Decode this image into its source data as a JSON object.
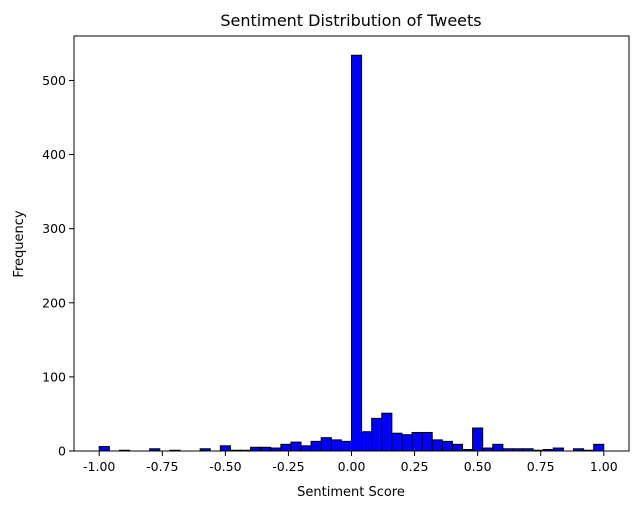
{
  "chart_data": {
    "type": "bar",
    "subtype": "histogram",
    "title": "Sentiment Distribution of Tweets",
    "xlabel": "Sentiment Score",
    "ylabel": "Frequency",
    "xlim": [
      -1.1,
      1.1
    ],
    "ylim": [
      0,
      560
    ],
    "xticks": [
      -1.0,
      -0.75,
      -0.5,
      -0.25,
      0.0,
      0.25,
      0.5,
      0.75,
      1.0
    ],
    "xtick_labels": [
      "-1.00",
      "-0.75",
      "-0.50",
      "-0.25",
      "0.00",
      "0.25",
      "0.50",
      "0.75",
      "1.00"
    ],
    "yticks": [
      0,
      100,
      200,
      300,
      400,
      500
    ],
    "ytick_labels": [
      "0",
      "100",
      "200",
      "300",
      "400",
      "500"
    ],
    "bin_start": -1.0,
    "bin_width": 0.04,
    "values": [
      6,
      0,
      1,
      0,
      0,
      3,
      0,
      1,
      0,
      0,
      3,
      0,
      7,
      1,
      1,
      5,
      5,
      4,
      9,
      12,
      7,
      13,
      18,
      15,
      13,
      534,
      26,
      44,
      51,
      24,
      22,
      25,
      25,
      15,
      13,
      9,
      2,
      31,
      4,
      9,
      3,
      3,
      3,
      1,
      2,
      4,
      0,
      3,
      1,
      9
    ],
    "bar_color": "#0000ff",
    "edge_color": "#000000",
    "grid": false,
    "legend": "none"
  }
}
